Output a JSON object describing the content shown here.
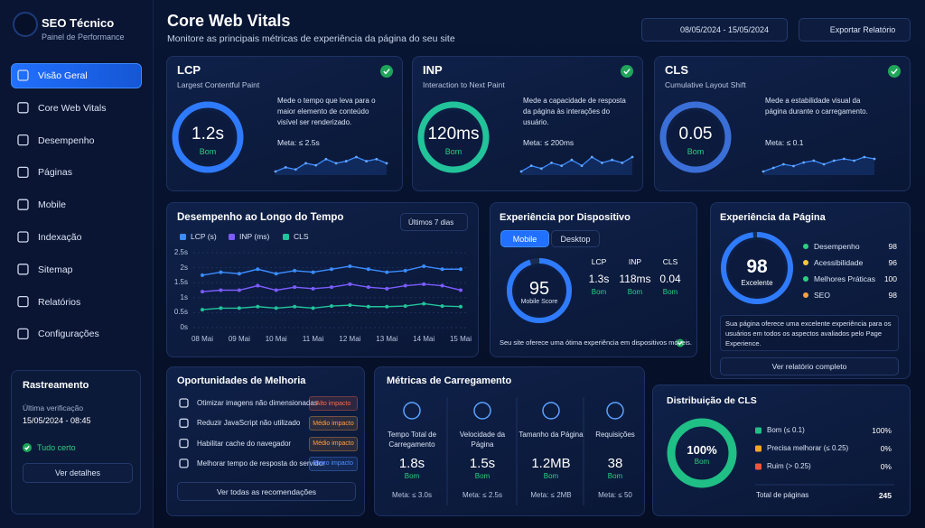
{
  "sidebar": {
    "brand": "SEO Técnico",
    "tagline": "Painel de Performance",
    "nav": [
      "Visão Geral",
      "Core Web Vitals",
      "Desempenho",
      "Páginas",
      "Mobile",
      "Indexação",
      "Sitemap",
      "Relatórios",
      "Configurações"
    ],
    "crawl": {
      "title": "Rastreamento",
      "label": "Última verificação",
      "date": "15/05/2024 - 08:45",
      "status": "Tudo certo",
      "button": "Ver detalhes"
    }
  },
  "header": {
    "title": "Core Web Vitals",
    "subtitle": "Monitore as principais métricas de experiência da página do seu site",
    "date_range": "08/05/2024 - 15/05/2024",
    "export": "Exportar Relatório"
  },
  "metric_cards": [
    {
      "name": "LCP",
      "full_name": "Largest Contentful Paint",
      "value": "1.2s",
      "rating": "Bom",
      "description": "Mede o tempo que leva para o maior elemento de conteúdo visível ser renderizado.",
      "target": "Meta: ≤ 2.5s",
      "color": "#2f7bff",
      "trend": [
        3,
        4,
        3.5,
        5,
        4.5,
        6,
        5,
        5.5,
        6.5,
        5.5,
        6,
        5
      ]
    },
    {
      "name": "INP",
      "full_name": "Interaction to Next Paint",
      "value": "120ms",
      "rating": "Bom",
      "description": "Mede a capacidade de resposta da página às interações do usuário.",
      "target": "Meta: ≤ 200ms",
      "color": "#22c39a",
      "trend": [
        4,
        5,
        4.5,
        5.5,
        5,
        6,
        5,
        6.5,
        5.5,
        6,
        5.5,
        6.5
      ]
    },
    {
      "name": "CLS",
      "full_name": "Cumulative Layout Shift",
      "value": "0.05",
      "rating": "Bom",
      "description": "Mede a estabilidade visual da página durante o carregamento.",
      "target": "Meta: ≤ 0.1",
      "color": "#3b6fd8",
      "trend": [
        3,
        4,
        5,
        4.5,
        5.5,
        6,
        5,
        6,
        6.5,
        6,
        7,
        6.5
      ]
    }
  ],
  "chart_data": [
    {
      "type": "line",
      "title": "Desempenho ao Longo do Tempo",
      "range": "Últimos 7 dias",
      "categories": [
        "08 Mai",
        null,
        "09 Mai",
        null,
        "10 Mai",
        null,
        "11 Mai",
        null,
        "12 Mai",
        null,
        "13 Mai",
        null,
        "14 Mai",
        null,
        "15 Mai"
      ],
      "series": [
        {
          "name": "LCP (s)",
          "color": "#3b8cff",
          "values": [
            1.75,
            1.85,
            1.8,
            1.95,
            1.8,
            1.9,
            1.85,
            1.95,
            2.05,
            1.95,
            1.85,
            1.9,
            2.05,
            1.95,
            1.95
          ]
        },
        {
          "name": "INP (ms)",
          "color": "#7c5cff",
          "values": [
            1.2,
            1.25,
            1.25,
            1.4,
            1.25,
            1.35,
            1.3,
            1.35,
            1.45,
            1.35,
            1.3,
            1.4,
            1.45,
            1.4,
            1.25
          ]
        },
        {
          "name": "CLS",
          "color": "#22c39a",
          "values": [
            0.6,
            0.65,
            0.65,
            0.7,
            0.65,
            0.7,
            0.65,
            0.72,
            0.75,
            0.7,
            0.7,
            0.72,
            0.8,
            0.72,
            0.7
          ]
        }
      ],
      "ylim": [
        0,
        2.5
      ],
      "yticks": [
        {
          "value": 0,
          "label": "0s"
        },
        {
          "value": 0.5,
          "label": "0.5s"
        },
        {
          "value": 1,
          "label": "1s"
        },
        {
          "value": 1.5,
          "label": "1.5s"
        },
        {
          "value": 2,
          "label": "2s"
        },
        {
          "value": 2.5,
          "label": "2.5s"
        }
      ],
      "grid": true
    },
    {
      "type": "pie",
      "title": "Distribuição de CLS",
      "categories": [
        "Bom (≤ 0.1)",
        "Precisa melhorar (≤ 0.25)",
        "Ruim (> 0.25)"
      ],
      "values": [
        100,
        0,
        0
      ],
      "value_labels": [
        "100%",
        "0%",
        "0%"
      ],
      "colors": [
        "#1fbf85",
        "#f5a623",
        "#f0553a"
      ],
      "center_label": "Bom",
      "total_label": "Total de páginas",
      "total": 245
    }
  ],
  "device_experience": {
    "title": "Experiência por Dispositivo",
    "tabs": [
      "Mobile",
      "Desktop"
    ],
    "score": 95,
    "score_label": "Mobile Score",
    "metrics": [
      {
        "name": "LCP",
        "value": "1.3s",
        "rating": "Bom"
      },
      {
        "name": "INP",
        "value": "118ms",
        "rating": "Bom"
      },
      {
        "name": "CLS",
        "value": "0.04",
        "rating": "Bom"
      }
    ],
    "note": "Seu site oferece uma ótima experiência em dispositivos móveis."
  },
  "page_experience": {
    "title": "Experiência da Página",
    "score": 98,
    "rating": "Excelente",
    "items": [
      {
        "name": "Desempenho",
        "value": 98,
        "color": "#2bd17e"
      },
      {
        "name": "Acessibilidade",
        "value": 96,
        "color": "#f5c542"
      },
      {
        "name": "Melhores Práticas",
        "value": 100,
        "color": "#2bd17e"
      },
      {
        "name": "SEO",
        "value": 98,
        "color": "#ff9f40"
      }
    ],
    "summary": "Sua página oferece uma excelente experiência para os usuários em todos os aspectos avaliados pelo Page Experience.",
    "button": "Ver relatório completo"
  },
  "opportunities": {
    "title": "Oportunidades de Melhoria",
    "items": [
      {
        "text": "Otimizar imagens não dimensionadas",
        "impact": "Alto impacto",
        "color": "#ff6b4a"
      },
      {
        "text": "Reduzir JavaScript não utilizado",
        "impact": "Médio impacto",
        "color": "#ff9f40"
      },
      {
        "text": "Habilitar cache do navegador",
        "impact": "Médio impacto",
        "color": "#ff9f40"
      },
      {
        "text": "Melhorar tempo de resposta do servidor",
        "impact": "Baixo impacto",
        "color": "#4d8dff"
      }
    ],
    "button": "Ver todas as recomendações"
  },
  "load_metrics": {
    "title": "Métricas de Carregamento",
    "items": [
      {
        "label": "Tempo Total de Carregamento",
        "value": "1.8s",
        "rating": "Bom",
        "target": "Meta: ≤ 3.0s"
      },
      {
        "label": "Velocidade da Página",
        "value": "1.5s",
        "rating": "Bom",
        "target": "Meta: ≤ 2.5s"
      },
      {
        "label": "Tamanho da Página",
        "value": "1.2MB",
        "rating": "Bom",
        "target": "Meta: ≤ 2MB"
      },
      {
        "label": "Requisições",
        "value": "38",
        "rating": "Bom",
        "target": "Meta: ≤ 50"
      }
    ]
  }
}
